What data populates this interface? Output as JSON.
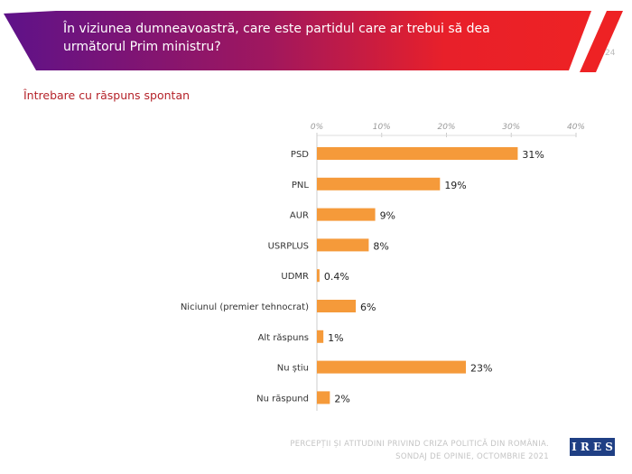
{
  "header": {
    "title": "În viziunea dumneavoastră, care este partidul care ar trebui să dea următorul Prim ministru?",
    "page_number": "24"
  },
  "subtitle": "Întrebare cu răspuns spontan",
  "footer": {
    "line1": "PERCEPȚII ȘI ATITUDINI PRIVIND CRIZA POLITICĂ DIN ROMÂNIA.",
    "line2": "SONDAJ DE OPINIE, OCTOMBRIE 2021",
    "logo": "IRES"
  },
  "chart_data": {
    "type": "bar",
    "orientation": "horizontal",
    "categories": [
      "PSD",
      "PNL",
      "AUR",
      "USRPLUS",
      "UDMR",
      "Niciunul (premier tehnocrat)",
      "Alt răspuns",
      "Nu știu",
      "Nu răspund"
    ],
    "values": [
      31,
      19,
      9,
      8,
      0.4,
      6,
      1,
      23,
      2
    ],
    "value_labels": [
      "31%",
      "19%",
      "9%",
      "8%",
      "0.4%",
      "6%",
      "1%",
      "23%",
      "2%"
    ],
    "xticks": [
      "0%",
      "10%",
      "20%",
      "30%",
      "40%"
    ],
    "xlim": [
      0,
      40
    ],
    "bar_color": "#f59a3a"
  }
}
